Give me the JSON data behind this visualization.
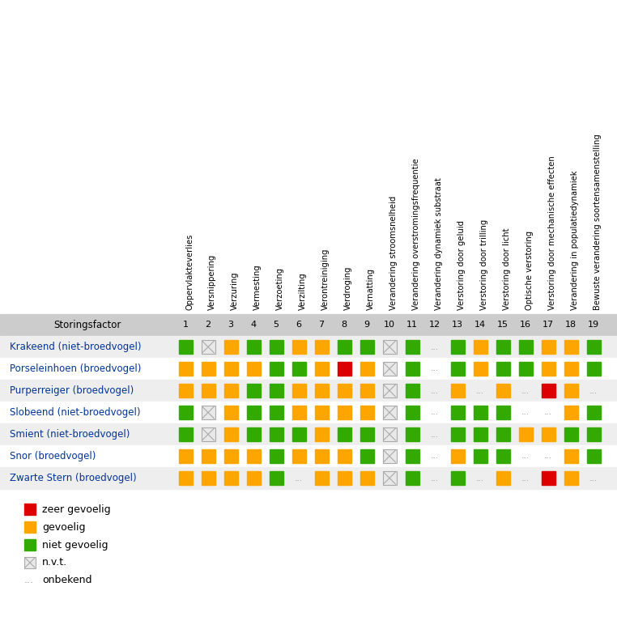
{
  "col_labels_rotated": [
    "Oppervlakteverlies",
    "Versnippering",
    "Verzuring",
    "Vermesting",
    "Verzoeting",
    "Verzilting",
    "Verontreiniging",
    "Verdroging",
    "Vernatting",
    "Verandering stroomsnelheid",
    "Verandering overstromingsfrequentie",
    "Verandering dynamiek substraat",
    "Verstoring door geluid",
    "Verstoring door trilling",
    "Verstoring door licht",
    "Optische verstoring",
    "Verstoring door mechanische effecten",
    "Verandering in populatiedynamiek",
    "Bewuste verandering soortensamenstelling"
  ],
  "rows": [
    {
      "name": "Krakeend (niet-broedvogel)",
      "values": [
        "G",
        "N",
        "O",
        "G",
        "G",
        "O",
        "O",
        "G",
        "G",
        "N",
        "G",
        "U",
        "G",
        "O",
        "G",
        "G",
        "O",
        "O",
        "G"
      ]
    },
    {
      "name": "Porseleinhoen (broedvogel)",
      "values": [
        "O",
        "O",
        "O",
        "O",
        "G",
        "G",
        "O",
        "R",
        "O",
        "N",
        "G",
        "U",
        "G",
        "O",
        "G",
        "G",
        "O",
        "O",
        "G"
      ]
    },
    {
      "name": "Purperreiger (broedvogel)",
      "values": [
        "O",
        "O",
        "O",
        "G",
        "G",
        "O",
        "O",
        "O",
        "O",
        "N",
        "G",
        "U",
        "O",
        "U",
        "O",
        "U",
        "R",
        "O",
        "U"
      ]
    },
    {
      "name": "Slobeend (niet-broedvogel)",
      "values": [
        "G",
        "N",
        "O",
        "G",
        "G",
        "O",
        "O",
        "O",
        "O",
        "N",
        "G",
        "U",
        "G",
        "G",
        "G",
        "U",
        "U",
        "O",
        "G"
      ]
    },
    {
      "name": "Smient (niet-broedvogel)",
      "values": [
        "G",
        "N",
        "O",
        "G",
        "G",
        "G",
        "O",
        "G",
        "G",
        "N",
        "G",
        "U",
        "G",
        "G",
        "G",
        "O",
        "O",
        "G",
        "G"
      ]
    },
    {
      "name": "Snor (broedvogel)",
      "values": [
        "O",
        "O",
        "O",
        "O",
        "G",
        "O",
        "O",
        "O",
        "G",
        "N",
        "G",
        "U",
        "O",
        "G",
        "G",
        "U",
        "U",
        "O",
        "G"
      ]
    },
    {
      "name": "Zwarte Stern (broedvogel)",
      "values": [
        "O",
        "O",
        "O",
        "O",
        "G",
        "U",
        "O",
        "O",
        "O",
        "N",
        "G",
        "U",
        "G",
        "U",
        "O",
        "U",
        "R",
        "O",
        "U"
      ]
    }
  ],
  "header_bg": "#cccccc",
  "row_bg_odd": "#eeeeee",
  "row_bg_even": "#ffffff",
  "header_text_color": "#000000",
  "row_text_color": "#003399",
  "red": "#dd0000",
  "orange": "#ffa500",
  "green": "#33aa00",
  "fig_width": 7.62,
  "fig_height": 7.72,
  "dpi": 100
}
